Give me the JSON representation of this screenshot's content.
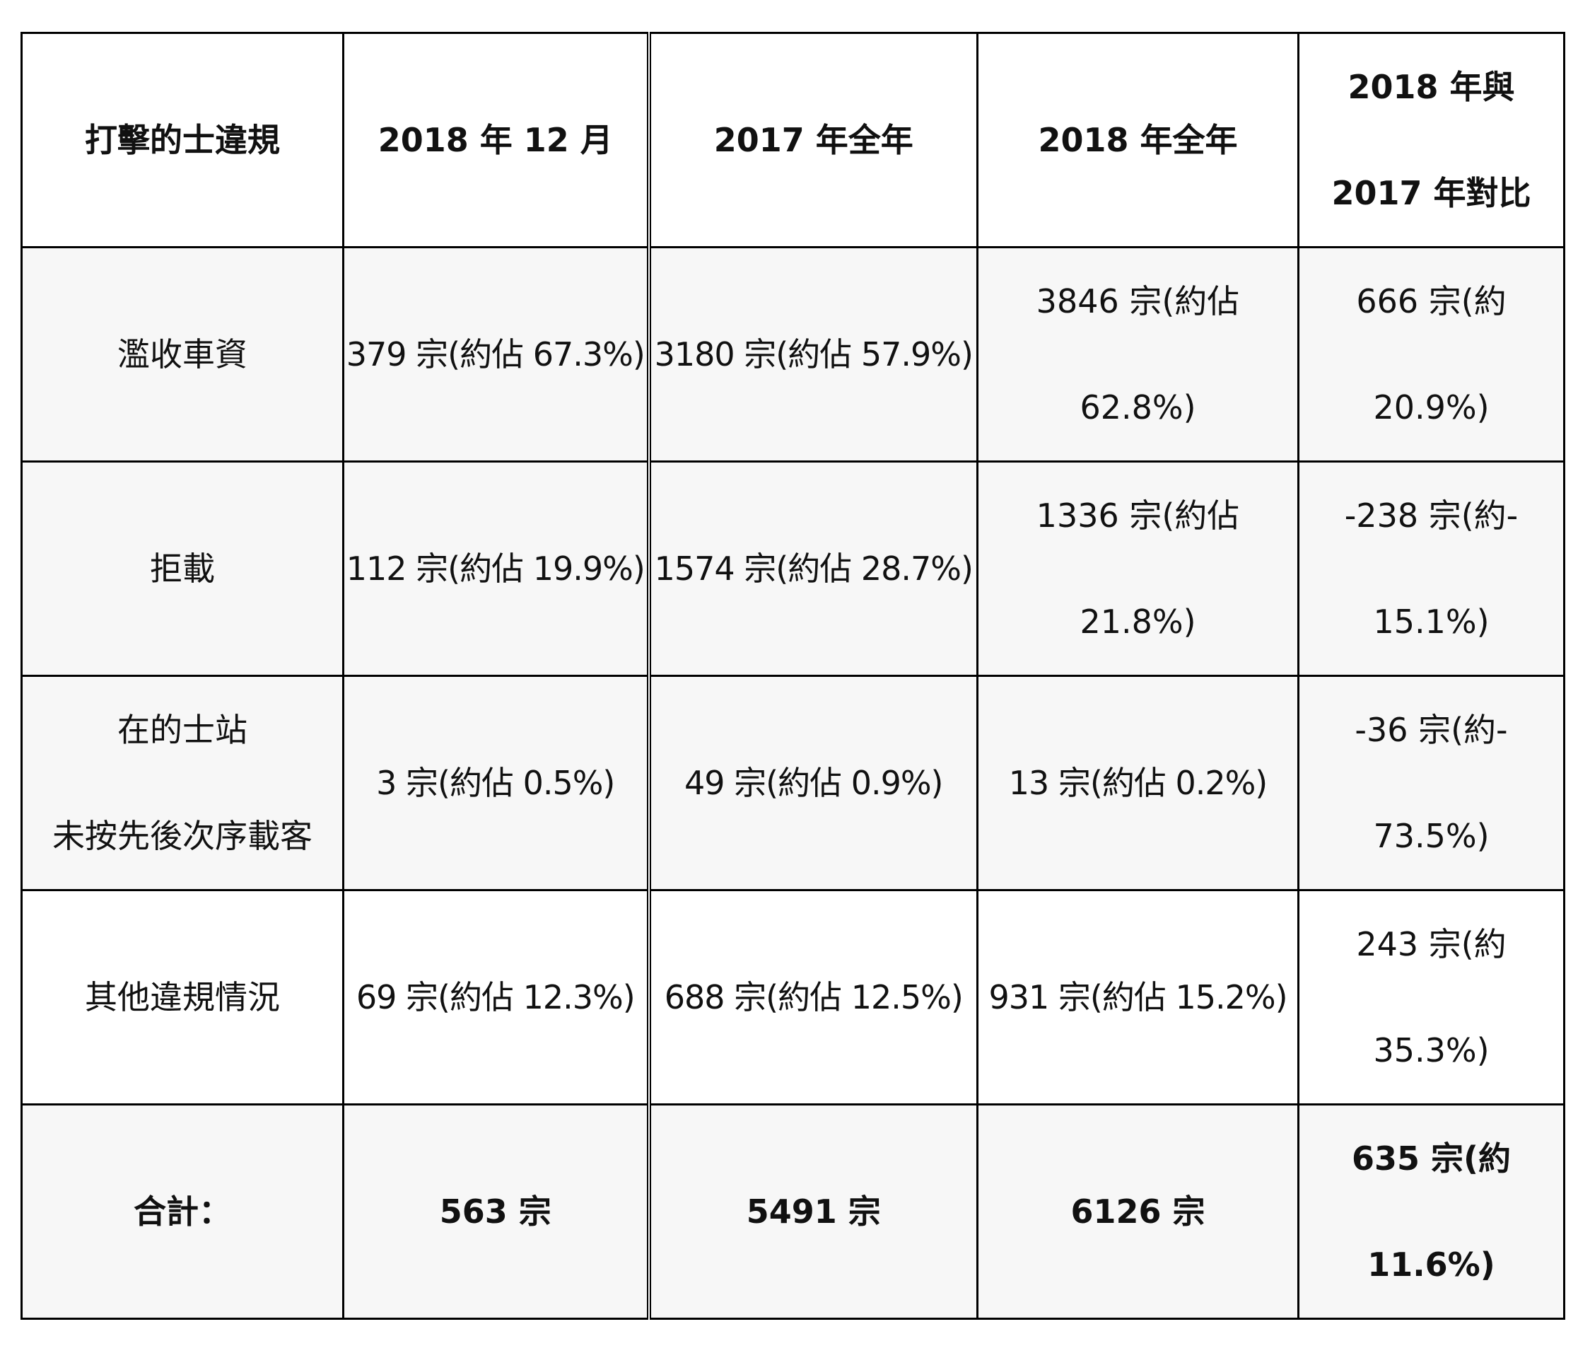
{
  "table": {
    "headers": [
      "打擊的士違規",
      "2018 年 12 月",
      "2017 年全年",
      "2018 年全年",
      "2018 年與\n2017 年對比"
    ],
    "rows": [
      {
        "category": "濫收車資",
        "dec_2018": "379 宗(約佔 67.3%)",
        "year_2017": "3180 宗(約佔 57.9%)",
        "year_2018": "3846 宗(約佔\n62.8%)",
        "comparison": "666 宗(約\n20.9%)"
      },
      {
        "category": "拒載",
        "dec_2018": "112 宗(約佔 19.9%)",
        "year_2017": "1574 宗(約佔 28.7%)",
        "year_2018": "1336 宗(約佔\n21.8%)",
        "comparison": "-238 宗(約-\n15.1%)"
      },
      {
        "category": "在的士站\n未按先後次序載客",
        "dec_2018": "3 宗(約佔 0.5%)",
        "year_2017": "49 宗(約佔 0.9%)",
        "year_2018": "13 宗(約佔 0.2%)",
        "comparison": "-36 宗(約-\n73.5%)"
      },
      {
        "category": "其他違規情況",
        "dec_2018": "69 宗(約佔 12.3%)",
        "year_2017": "688 宗(約佔 12.5%)",
        "year_2018": "931 宗(約佔 15.2%)",
        "comparison": "243 宗(約\n35.3%)"
      }
    ],
    "total": {
      "label": "合計：",
      "dec_2018": "563 宗",
      "year_2017": "5491 宗",
      "year_2018": "6126 宗",
      "comparison": "635 宗(約\n11.6%)"
    }
  }
}
